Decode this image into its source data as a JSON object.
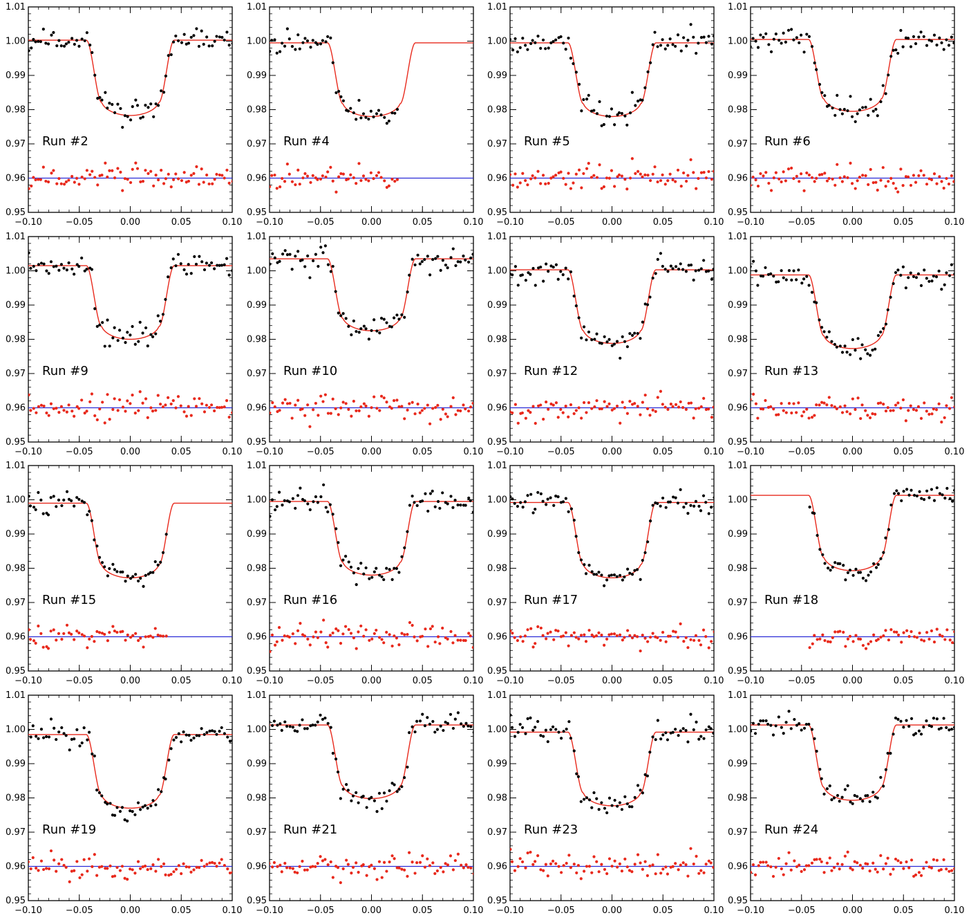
{
  "colors": {
    "data_points": "#000000",
    "model_curve": "#e8291c",
    "residual_points": "#e8291c",
    "zero_line": "#2b2bd6",
    "axes": "#000000"
  },
  "panel_template": {
    "type": "scatter",
    "xlim": [
      -0.1,
      0.1
    ],
    "ylim": [
      0.95,
      1.01
    ],
    "xticks": [
      -0.1,
      -0.05,
      0.0,
      0.05,
      0.1
    ],
    "xtick_labels": [
      "−0.10",
      "−0.05",
      "0.00",
      "0.05",
      "0.10"
    ],
    "yticks": [
      0.95,
      0.96,
      0.97,
      0.98,
      0.99,
      1.0,
      1.01
    ],
    "ytick_labels": [
      "0.95",
      "0.96",
      "0.97",
      "0.98",
      "0.99",
      "1.00",
      "1.01"
    ],
    "residual_offset": 0.96,
    "grid": false
  },
  "chart_data": [
    {
      "label": "Run  #2",
      "type": "scatter",
      "baseline": 1.0003,
      "depth": 0.022,
      "model_x": [
        -0.1,
        0.1
      ],
      "data_x": [
        -0.1,
        0.1
      ],
      "residual_x": [
        -0.1,
        0.1
      ],
      "seed": 2
    },
    {
      "label": "Run  #4",
      "type": "scatter",
      "baseline": 0.9995,
      "depth": 0.0215,
      "model_x": [
        -0.1,
        0.1
      ],
      "data_x": [
        -0.1,
        0.024
      ],
      "residual_x": [
        -0.1,
        0.024
      ],
      "seed": 4
    },
    {
      "label": "Run  #5",
      "type": "scatter",
      "baseline": 0.9995,
      "depth": 0.0215,
      "model_x": [
        -0.1,
        0.1
      ],
      "data_x": [
        -0.1,
        0.1
      ],
      "residual_x": [
        -0.1,
        0.1
      ],
      "seed": 5
    },
    {
      "label": "Run  #6",
      "type": "scatter",
      "baseline": 1.0005,
      "depth": 0.021,
      "model_x": [
        -0.1,
        0.1
      ],
      "data_x": [
        -0.1,
        0.1
      ],
      "residual_x": [
        -0.1,
        0.1
      ],
      "seed": 6
    },
    {
      "label": "Run  #9",
      "type": "scatter",
      "baseline": 1.0015,
      "depth": 0.0215,
      "model_x": [
        -0.1,
        0.1
      ],
      "data_x": [
        -0.1,
        0.1
      ],
      "residual_x": [
        -0.1,
        0.1
      ],
      "seed": 9
    },
    {
      "label": "Run  #10",
      "type": "scatter",
      "baseline": 1.0035,
      "depth": 0.021,
      "model_x": [
        -0.1,
        0.1
      ],
      "data_x": [
        -0.1,
        0.1
      ],
      "residual_x": [
        -0.1,
        0.1
      ],
      "seed": 10
    },
    {
      "label": "Run  #12",
      "type": "scatter",
      "baseline": 1.0003,
      "depth": 0.0215,
      "model_x": [
        -0.1,
        0.1
      ],
      "data_x": [
        -0.1,
        0.1
      ],
      "residual_x": [
        -0.1,
        0.1
      ],
      "seed": 12
    },
    {
      "label": "Run  #13",
      "type": "scatter",
      "baseline": 0.9988,
      "depth": 0.0215,
      "model_x": [
        -0.1,
        0.1
      ],
      "data_x": [
        -0.1,
        0.1
      ],
      "residual_x": [
        -0.1,
        0.1
      ],
      "seed": 13
    },
    {
      "label": "Run  #15",
      "type": "scatter",
      "baseline": 0.999,
      "depth": 0.0218,
      "model_x": [
        -0.1,
        0.1
      ],
      "data_x": [
        -0.1,
        0.034
      ],
      "residual_x": [
        -0.1,
        0.034
      ],
      "seed": 15
    },
    {
      "label": "Run  #16",
      "type": "scatter",
      "baseline": 0.9995,
      "depth": 0.0215,
      "model_x": [
        -0.1,
        0.1
      ],
      "data_x": [
        -0.1,
        0.1
      ],
      "residual_x": [
        -0.1,
        0.1
      ],
      "seed": 16
    },
    {
      "label": "Run  #17",
      "type": "scatter",
      "baseline": 0.9992,
      "depth": 0.022,
      "model_x": [
        -0.1,
        0.1
      ],
      "data_x": [
        -0.1,
        0.1
      ],
      "residual_x": [
        -0.1,
        0.1
      ],
      "seed": 17
    },
    {
      "label": "Run  #18",
      "type": "scatter",
      "baseline": 1.0013,
      "depth": 0.022,
      "model_x": [
        -0.1,
        0.1
      ],
      "data_x": [
        -0.042,
        0.1
      ],
      "residual_x": [
        -0.042,
        0.1
      ],
      "seed": 18
    },
    {
      "label": "Run  #19",
      "type": "scatter",
      "baseline": 0.9985,
      "depth": 0.0215,
      "model_x": [
        -0.1,
        0.1
      ],
      "data_x": [
        -0.1,
        0.1
      ],
      "residual_x": [
        -0.1,
        0.1
      ],
      "seed": 19
    },
    {
      "label": "Run  #21",
      "type": "scatter",
      "baseline": 1.0013,
      "depth": 0.0215,
      "model_x": [
        -0.1,
        0.1
      ],
      "data_x": [
        -0.1,
        0.1
      ],
      "residual_x": [
        -0.1,
        0.1
      ],
      "seed": 21
    },
    {
      "label": "Run  #23",
      "type": "scatter",
      "baseline": 0.9992,
      "depth": 0.0215,
      "model_x": [
        -0.1,
        0.1
      ],
      "data_x": [
        -0.1,
        0.1
      ],
      "residual_x": [
        -0.1,
        0.1
      ],
      "seed": 23
    },
    {
      "label": "Run  #24",
      "type": "scatter",
      "baseline": 1.0013,
      "depth": 0.022,
      "model_x": [
        -0.1,
        0.1
      ],
      "data_x": [
        -0.1,
        0.1
      ],
      "residual_x": [
        -0.1,
        0.1
      ],
      "seed": 24
    }
  ]
}
